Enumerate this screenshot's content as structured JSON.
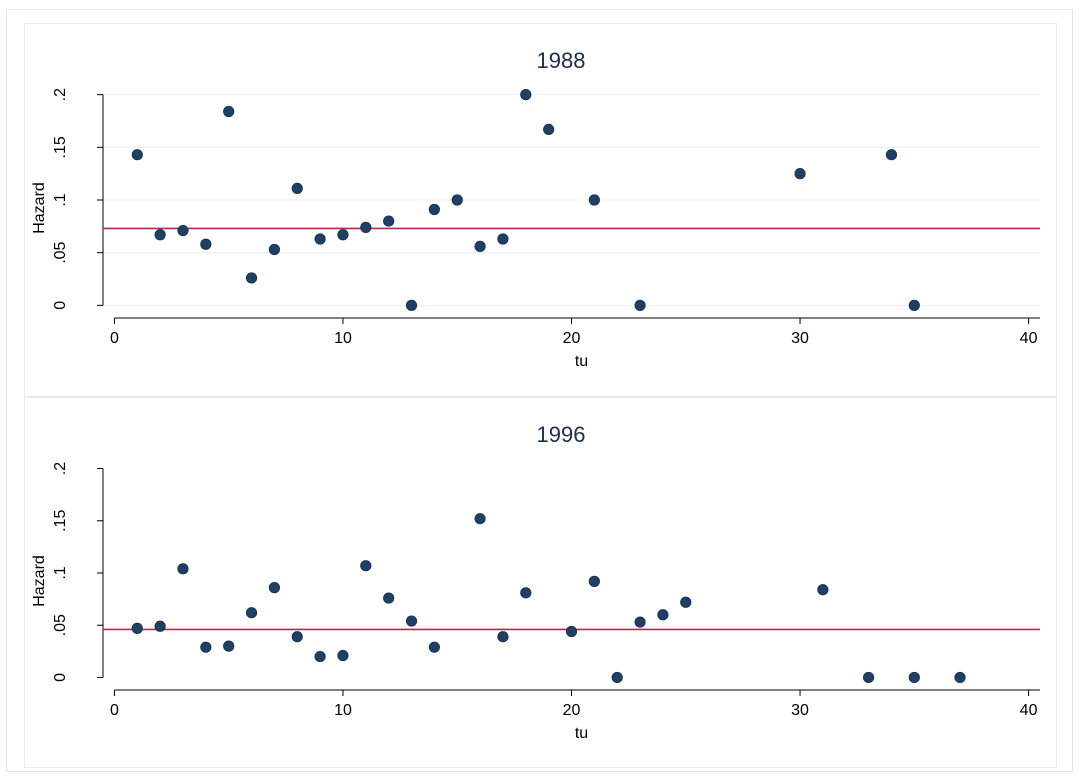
{
  "chart_data": [
    {
      "type": "scatter",
      "title": "1988",
      "xlabel": "tu",
      "ylabel": "Hazard",
      "xlim": [
        -0.5,
        40.5
      ],
      "ylim": [
        -0.012,
        0.212
      ],
      "xticks": [
        0,
        10,
        20,
        30,
        40
      ],
      "xtick_labels": [
        "0",
        "10",
        "20",
        "30",
        "40"
      ],
      "yticks": [
        0,
        0.05,
        0.1,
        0.15,
        0.2
      ],
      "ytick_labels": [
        "0",
        ".05",
        ".1",
        ".15",
        ".2"
      ],
      "grid": true,
      "point_color": "#1f3f63",
      "reference_line": {
        "y": 0.073,
        "color": "#b5294a"
      },
      "points": [
        {
          "x": 1,
          "y": 0.143
        },
        {
          "x": 2,
          "y": 0.067
        },
        {
          "x": 3,
          "y": 0.071
        },
        {
          "x": 4,
          "y": 0.058
        },
        {
          "x": 5,
          "y": 0.184
        },
        {
          "x": 6,
          "y": 0.026
        },
        {
          "x": 7,
          "y": 0.053
        },
        {
          "x": 8,
          "y": 0.111
        },
        {
          "x": 9,
          "y": 0.063
        },
        {
          "x": 10,
          "y": 0.067
        },
        {
          "x": 11,
          "y": 0.074
        },
        {
          "x": 12,
          "y": 0.08
        },
        {
          "x": 13,
          "y": 0.0
        },
        {
          "x": 14,
          "y": 0.091
        },
        {
          "x": 15,
          "y": 0.1
        },
        {
          "x": 16,
          "y": 0.056
        },
        {
          "x": 17,
          "y": 0.063
        },
        {
          "x": 18,
          "y": 0.2
        },
        {
          "x": 19,
          "y": 0.167
        },
        {
          "x": 21,
          "y": 0.1
        },
        {
          "x": 23,
          "y": 0.0
        },
        {
          "x": 30,
          "y": 0.125
        },
        {
          "x": 34,
          "y": 0.143
        },
        {
          "x": 35,
          "y": 0.0
        }
      ]
    },
    {
      "type": "scatter",
      "title": "1996",
      "xlabel": "tu",
      "ylabel": "Hazard",
      "xlim": [
        -0.5,
        40.5
      ],
      "ylim": [
        -0.012,
        0.212
      ],
      "xticks": [
        0,
        10,
        20,
        30,
        40
      ],
      "xtick_labels": [
        "0",
        "10",
        "20",
        "30",
        "40"
      ],
      "yticks": [
        0,
        0.05,
        0.1,
        0.15,
        0.2
      ],
      "ytick_labels": [
        "0",
        ".05",
        ".1",
        ".15",
        ".2"
      ],
      "grid": false,
      "point_color": "#1f3f63",
      "reference_line": {
        "y": 0.046,
        "color": "#b5294a"
      },
      "points": [
        {
          "x": 1,
          "y": 0.047
        },
        {
          "x": 2,
          "y": 0.049
        },
        {
          "x": 3,
          "y": 0.104
        },
        {
          "x": 4,
          "y": 0.029
        },
        {
          "x": 5,
          "y": 0.03
        },
        {
          "x": 6,
          "y": 0.062
        },
        {
          "x": 7,
          "y": 0.086
        },
        {
          "x": 8,
          "y": 0.039
        },
        {
          "x": 9,
          "y": 0.02
        },
        {
          "x": 10,
          "y": 0.021
        },
        {
          "x": 11,
          "y": 0.107
        },
        {
          "x": 12,
          "y": 0.076
        },
        {
          "x": 13,
          "y": 0.054
        },
        {
          "x": 14,
          "y": 0.029
        },
        {
          "x": 16,
          "y": 0.152
        },
        {
          "x": 17,
          "y": 0.039
        },
        {
          "x": 18,
          "y": 0.081
        },
        {
          "x": 20,
          "y": 0.044
        },
        {
          "x": 21,
          "y": 0.092
        },
        {
          "x": 22,
          "y": 0.0
        },
        {
          "x": 23,
          "y": 0.053
        },
        {
          "x": 24,
          "y": 0.06
        },
        {
          "x": 25,
          "y": 0.072
        },
        {
          "x": 31,
          "y": 0.084
        },
        {
          "x": 33,
          "y": 0.0
        },
        {
          "x": 35,
          "y": 0.0
        },
        {
          "x": 37,
          "y": 0.0
        }
      ]
    }
  ]
}
